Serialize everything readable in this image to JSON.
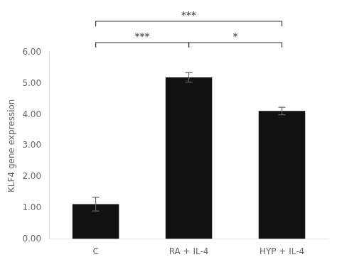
{
  "chart_data": {
    "type": "bar",
    "categories": [
      "C",
      "RA + IL-4",
      "HYP + IL-4"
    ],
    "values": [
      1.12,
      5.2,
      4.12
    ],
    "errors": [
      0.22,
      0.15,
      0.12
    ],
    "color": "#111111",
    "ylabel": "KLF4 gene expression",
    "ylim": [
      0,
      6.0
    ],
    "yticks": [
      {
        "value": 0,
        "label": "0.00"
      },
      {
        "value": 1,
        "label": "1.00"
      },
      {
        "value": 2,
        "label": "2.00"
      },
      {
        "value": 3,
        "label": "3.00"
      },
      {
        "value": 4,
        "label": "4.00"
      },
      {
        "value": 5,
        "label": "5.00"
      },
      {
        "value": 6,
        "label": "6.00"
      }
    ],
    "grid": false,
    "annotations": [
      {
        "text": "***",
        "from": "C",
        "to": "RA + IL-4",
        "color": "#333333"
      },
      {
        "text": "*",
        "from": "RA + IL-4",
        "to": "HYP + IL-4",
        "color": "#333333"
      },
      {
        "text": "***",
        "from": "C",
        "to": "HYP + IL-4",
        "color": "#333333"
      }
    ]
  }
}
